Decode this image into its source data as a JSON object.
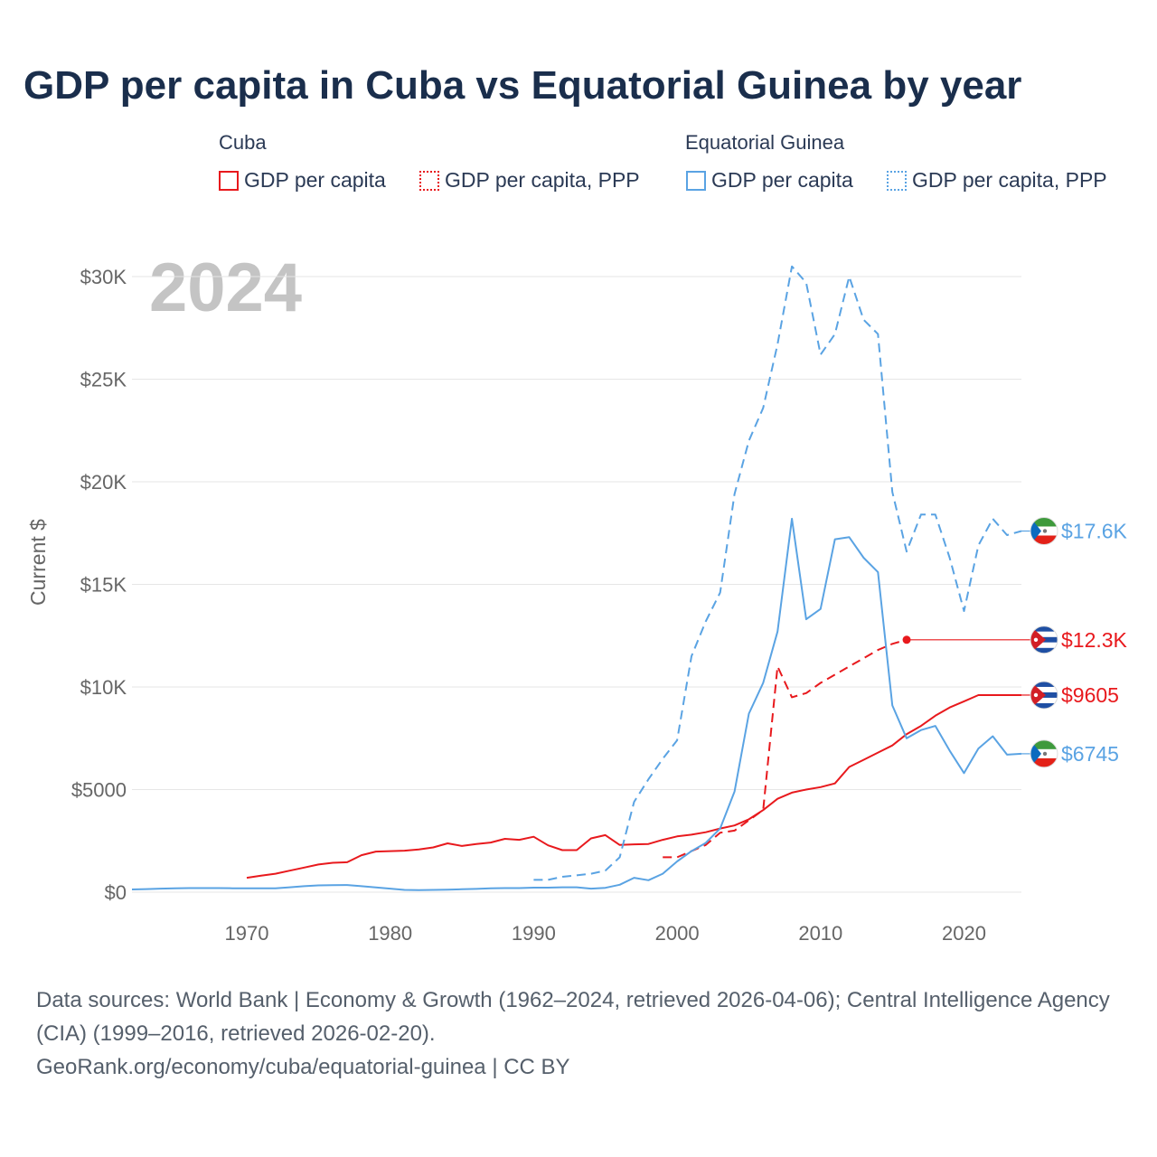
{
  "title": "GDP per capita in Cuba vs Equatorial Guinea by year",
  "legend": {
    "groups": [
      {
        "name": "Cuba",
        "items": [
          "GDP per capita",
          "GDP per capita, PPP"
        ]
      },
      {
        "name": "Equatorial Guinea",
        "items": [
          "GDP per capita",
          "GDP per capita, PPP"
        ]
      }
    ]
  },
  "year_watermark": "2024",
  "colors": {
    "cuba": "#e8191d",
    "equatorial_guinea": "#5aa3e3",
    "grid": "#e6e6e6",
    "watermark": "#c4c4c4"
  },
  "chart_data": {
    "type": "line",
    "ylabel": "Current $",
    "xlim": [
      1962,
      2024
    ],
    "ylim": [
      0,
      30000
    ],
    "x_ticks": [
      1970,
      1980,
      1990,
      2000,
      2010,
      2020
    ],
    "y_ticks": [
      {
        "value": 0,
        "label": "$0"
      },
      {
        "value": 5000,
        "label": "$5000"
      },
      {
        "value": 10000,
        "label": "$10K"
      },
      {
        "value": 15000,
        "label": "$15K"
      },
      {
        "value": 20000,
        "label": "$20K"
      },
      {
        "value": 25000,
        "label": "$25K"
      },
      {
        "value": 30000,
        "label": "$30K"
      }
    ],
    "series": [
      {
        "name": "Cuba GDP per capita",
        "country": "Cuba",
        "color": "#e8191d",
        "style": "solid",
        "end_label": "$9605",
        "points": [
          [
            1970,
            700
          ],
          [
            1971,
            800
          ],
          [
            1972,
            900
          ],
          [
            1973,
            1050
          ],
          [
            1974,
            1200
          ],
          [
            1975,
            1350
          ],
          [
            1976,
            1430
          ],
          [
            1977,
            1460
          ],
          [
            1978,
            1800
          ],
          [
            1979,
            1980
          ],
          [
            1980,
            2000
          ],
          [
            1981,
            2020
          ],
          [
            1982,
            2080
          ],
          [
            1983,
            2180
          ],
          [
            1984,
            2380
          ],
          [
            1985,
            2250
          ],
          [
            1986,
            2350
          ],
          [
            1987,
            2420
          ],
          [
            1988,
            2600
          ],
          [
            1989,
            2550
          ],
          [
            1990,
            2700
          ],
          [
            1991,
            2280
          ],
          [
            1992,
            2050
          ],
          [
            1993,
            2050
          ],
          [
            1994,
            2620
          ],
          [
            1995,
            2780
          ],
          [
            1996,
            2300
          ],
          [
            1997,
            2330
          ],
          [
            1998,
            2350
          ],
          [
            1999,
            2550
          ],
          [
            2000,
            2720
          ],
          [
            2001,
            2800
          ],
          [
            2002,
            2920
          ],
          [
            2003,
            3100
          ],
          [
            2004,
            3250
          ],
          [
            2005,
            3550
          ],
          [
            2006,
            4000
          ],
          [
            2007,
            4550
          ],
          [
            2008,
            4850
          ],
          [
            2009,
            5000
          ],
          [
            2010,
            5120
          ],
          [
            2011,
            5300
          ],
          [
            2012,
            6100
          ],
          [
            2013,
            6450
          ],
          [
            2014,
            6800
          ],
          [
            2015,
            7150
          ],
          [
            2016,
            7700
          ],
          [
            2017,
            8100
          ],
          [
            2018,
            8600
          ],
          [
            2019,
            9000
          ],
          [
            2020,
            9300
          ],
          [
            2021,
            9605
          ],
          [
            2022,
            9605
          ],
          [
            2023,
            9605
          ],
          [
            2024,
            9605
          ]
        ]
      },
      {
        "name": "Cuba GDP per capita, PPP",
        "country": "Cuba",
        "color": "#e8191d",
        "style": "dashed",
        "end_label": "$12.3K",
        "points": [
          [
            1999,
            1700
          ],
          [
            2000,
            1700
          ],
          [
            2001,
            2000
          ],
          [
            2002,
            2300
          ],
          [
            2003,
            2900
          ],
          [
            2004,
            3000
          ],
          [
            2005,
            3500
          ],
          [
            2006,
            4000
          ],
          [
            2007,
            11000
          ],
          [
            2008,
            9500
          ],
          [
            2009,
            9700
          ],
          [
            2010,
            10200
          ],
          [
            2011,
            10600
          ],
          [
            2012,
            11000
          ],
          [
            2013,
            11400
          ],
          [
            2014,
            11800
          ],
          [
            2015,
            12100
          ],
          [
            2016,
            12300
          ]
        ]
      },
      {
        "name": "Equatorial Guinea GDP per capita",
        "country": "Equatorial Guinea",
        "color": "#5aa3e3",
        "style": "solid",
        "end_label": "$6745",
        "points": [
          [
            1962,
            130
          ],
          [
            1963,
            150
          ],
          [
            1964,
            170
          ],
          [
            1965,
            190
          ],
          [
            1966,
            200
          ],
          [
            1967,
            200
          ],
          [
            1968,
            200
          ],
          [
            1969,
            190
          ],
          [
            1970,
            190
          ],
          [
            1971,
            190
          ],
          [
            1972,
            190
          ],
          [
            1973,
            240
          ],
          [
            1974,
            290
          ],
          [
            1975,
            330
          ],
          [
            1976,
            340
          ],
          [
            1977,
            350
          ],
          [
            1978,
            290
          ],
          [
            1979,
            230
          ],
          [
            1980,
            170
          ],
          [
            1981,
            110
          ],
          [
            1982,
            100
          ],
          [
            1983,
            110
          ],
          [
            1984,
            120
          ],
          [
            1985,
            140
          ],
          [
            1986,
            160
          ],
          [
            1987,
            190
          ],
          [
            1988,
            200
          ],
          [
            1989,
            200
          ],
          [
            1990,
            220
          ],
          [
            1991,
            220
          ],
          [
            1992,
            240
          ],
          [
            1993,
            240
          ],
          [
            1994,
            170
          ],
          [
            1995,
            210
          ],
          [
            1996,
            360
          ],
          [
            1997,
            700
          ],
          [
            1998,
            580
          ],
          [
            1999,
            900
          ],
          [
            2000,
            1500
          ],
          [
            2001,
            2000
          ],
          [
            2002,
            2400
          ],
          [
            2003,
            3100
          ],
          [
            2004,
            4900
          ],
          [
            2005,
            8700
          ],
          [
            2006,
            10200
          ],
          [
            2007,
            12700
          ],
          [
            2008,
            18200
          ],
          [
            2009,
            13300
          ],
          [
            2010,
            13800
          ],
          [
            2011,
            17200
          ],
          [
            2012,
            17300
          ],
          [
            2013,
            16300
          ],
          [
            2014,
            15600
          ],
          [
            2015,
            9100
          ],
          [
            2016,
            7500
          ],
          [
            2017,
            7900
          ],
          [
            2018,
            8100
          ],
          [
            2019,
            6900
          ],
          [
            2020,
            5800
          ],
          [
            2021,
            7000
          ],
          [
            2022,
            7600
          ],
          [
            2023,
            6700
          ],
          [
            2024,
            6745
          ]
        ]
      },
      {
        "name": "Equatorial Guinea GDP per capita, PPP",
        "country": "Equatorial Guinea",
        "color": "#5aa3e3",
        "style": "dashed",
        "end_label": "$17.6K",
        "points": [
          [
            1990,
            600
          ],
          [
            1991,
            600
          ],
          [
            1992,
            750
          ],
          [
            1993,
            820
          ],
          [
            1994,
            900
          ],
          [
            1995,
            1050
          ],
          [
            1996,
            1700
          ],
          [
            1997,
            4400
          ],
          [
            1998,
            5500
          ],
          [
            1999,
            6500
          ],
          [
            2000,
            7400
          ],
          [
            2001,
            11500
          ],
          [
            2002,
            13200
          ],
          [
            2003,
            14600
          ],
          [
            2004,
            19400
          ],
          [
            2005,
            22000
          ],
          [
            2006,
            23600
          ],
          [
            2007,
            26700
          ],
          [
            2008,
            30500
          ],
          [
            2009,
            29700
          ],
          [
            2010,
            26200
          ],
          [
            2011,
            27200
          ],
          [
            2012,
            30000
          ],
          [
            2013,
            27900
          ],
          [
            2014,
            27200
          ],
          [
            2015,
            19500
          ],
          [
            2016,
            16600
          ],
          [
            2017,
            18400
          ],
          [
            2018,
            18400
          ],
          [
            2019,
            16300
          ],
          [
            2020,
            13700
          ],
          [
            2021,
            16900
          ],
          [
            2022,
            18200
          ],
          [
            2023,
            17400
          ],
          [
            2024,
            17600
          ]
        ]
      }
    ]
  },
  "footer": {
    "sources": "Data sources: World Bank | Economy & Growth (1962–2024, retrieved 2026-04-06); Central Intelligence Agency (CIA) (1999–2016, retrieved 2026-02-20).",
    "attribution": "GeoRank.org/economy/cuba/equatorial-guinea | CC BY"
  }
}
